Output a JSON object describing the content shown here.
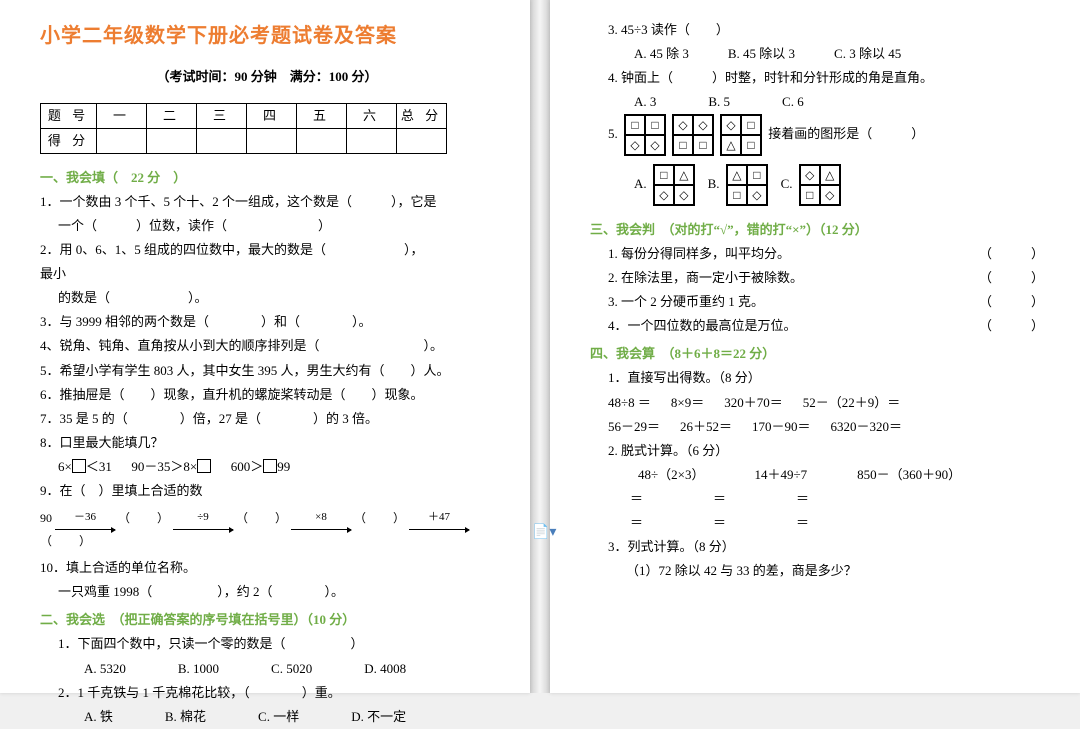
{
  "colors": {
    "accent": "#ed7d31",
    "section": "#70ad47",
    "text": "#000000",
    "page_bg": "#ffffff"
  },
  "title": "小学二年级数学下册必考题试卷及答案",
  "subtitle": "（考试时间：90 分钟　满分：100 分）",
  "score_table": {
    "row1": [
      "题 号",
      "一",
      "二",
      "三",
      "四",
      "五",
      "六",
      "总 分"
    ],
    "row2_label": "得 分"
  },
  "s1": {
    "head": "一、我会填（　22 分　）",
    "q1": "1．一个数由 3 个千、5 个十、2 个一组成，这个数是（　　　），它是",
    "q1b": "一个（　　　）位数，读作（　　　　　　　）",
    "q2": "2．用 0、6、1、5 组成的四位数中，最大的数是（　　　　　　），",
    "q2b": "最小",
    "q2c": "的数是（　　　　　　）。",
    "q3": "3．与 3999 相邻的两个数是（　　　　）和（　　　　）。",
    "q4": "4、锐角、钝角、直角按从小到大的顺序排列是（　　　　　　　　）。",
    "q5": "5．希望小学有学生 803 人，其中女生 395 人，男生大约有（　　）人。",
    "q6": "6．推抽屉是（　　）现象，直升机的螺旋桨转动是（　　）现象。",
    "q7": "7．35 是 5 的（　　　　）倍，27 是（　　　　）的 3 倍。",
    "q8": "8．口里最大能填几？",
    "q8a": "6×",
    "q8b": "＜31",
    "q8c": "90－35＞8×",
    "q8d": "600＞",
    "q8e": "99",
    "q9": "9．在（　）里填上合适的数",
    "arrows": {
      "start": "90",
      "a": "－36",
      "b": "÷9",
      "c": "×8",
      "d": "＋47"
    },
    "q10": "10．填上合适的单位名称。",
    "q10a": "一只鸡重 1998（　　　　　），约 2（　　　　）。"
  },
  "s2": {
    "head": "二、我会选　（把正确答案的序号填在括号里）（10 分）",
    "q1": "1．下面四个数中，只读一个零的数是（　　　　　）",
    "q1opts": "A. 5320　　　　B. 1000　　　　C. 5020　　　　D. 4008",
    "q2": "2．1 千克铁与 1 千克棉花比较，（　　　　）重。",
    "q2opts": "A. 铁　　　　B. 棉花　　　　C. 一样　　　　D. 不一定",
    "q3": "3. 45÷3 读作（　　）",
    "q3opts": "A. 45 除 3　　　B. 45 除以 3　　　C. 3 除以 45",
    "q4": "4. 钟面上（　　　）时整，时针和分针形成的角是直角。",
    "q4opts": "A. 3　　　　B. 5　　　　C. 6",
    "q5pre": "5.",
    "q5suf": "接着画的图形是（　　　）",
    "patterns_seq": [
      [
        "□",
        "□",
        "◇",
        "◇"
      ],
      [
        "◇",
        "◇",
        "□",
        "□"
      ],
      [
        "◇",
        "□",
        "△",
        "□"
      ]
    ],
    "patterns_opts": {
      "A": [
        "□",
        "△",
        "◇",
        "◇"
      ],
      "B": [
        "△",
        "□",
        "□",
        "◇"
      ],
      "C": [
        "◇",
        "△",
        "□",
        "◇"
      ]
    }
  },
  "s3": {
    "head": "三、我会判　（对的打“√”，错的打“×”）（12 分）",
    "q1": "1. 每份分得同样多，叫平均分。",
    "q2": "2. 在除法里，商一定小于被除数。",
    "q3": "3. 一个 2 分硬币重约 1 克。",
    "q4": "4．一个四位数的最高位是万位。",
    "blank": "（　　　）"
  },
  "s4": {
    "head": "四、我会算　（8＋6＋8＝22 分）",
    "q1": "1．直接写出得数。（8 分）",
    "row1": [
      "48÷8 ＝",
      "8×9＝",
      "320＋70＝",
      "52－（22＋9）＝"
    ],
    "row2": [
      "56－29＝",
      "26＋52＝",
      "170－90＝",
      "6320－320＝"
    ],
    "q2": "2. 脱式计算。（6 分）",
    "row3": [
      "48÷（2×3）",
      "14＋49÷7",
      "850－（360＋90）"
    ],
    "eq": "＝",
    "q3": "3．列式计算。（8 分）",
    "q3a": "（1）72 除以 42 与 33 的差，商是多少？"
  }
}
